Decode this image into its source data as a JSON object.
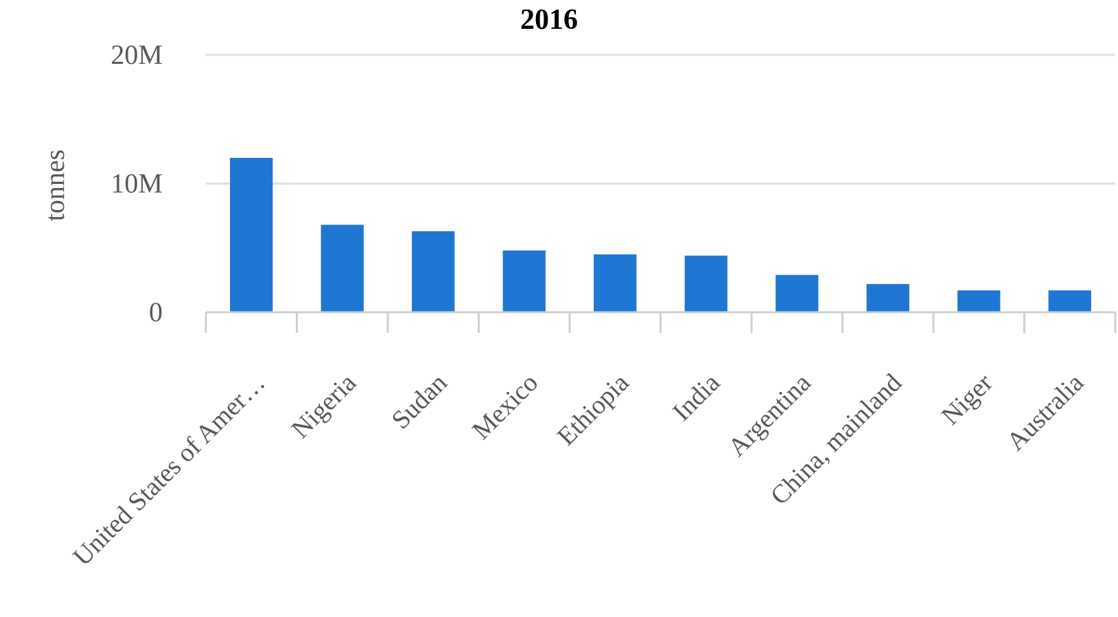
{
  "chart_data": {
    "type": "bar",
    "title": "2016",
    "xlabel": "",
    "ylabel": "tonnes",
    "categories": [
      "United States of Amer…",
      "Nigeria",
      "Sudan",
      "Mexico",
      "Ethiopia",
      "India",
      "Argentina",
      "China, mainland",
      "Niger",
      "Australia"
    ],
    "values": [
      12000000,
      6800000,
      6300000,
      4800000,
      4500000,
      4400000,
      2900000,
      2200000,
      1700000,
      1700000
    ],
    "ylim": [
      0,
      20000000
    ],
    "yticks": [
      {
        "value": 0,
        "label": "0"
      },
      {
        "value": 10000000,
        "label": "10M"
      },
      {
        "value": 20000000,
        "label": "20M"
      }
    ],
    "grid": true,
    "legend": "none",
    "colors": {
      "bar": "#1f77d4",
      "grid": "#e0e0e0",
      "axis": "#d0d0d0",
      "text": "#595959",
      "title": "#000000"
    }
  }
}
